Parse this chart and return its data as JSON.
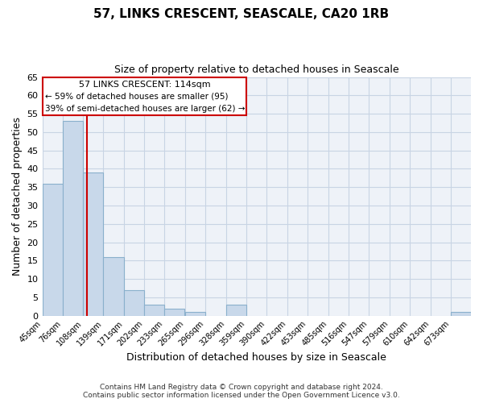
{
  "title": "57, LINKS CRESCENT, SEASCALE, CA20 1RB",
  "subtitle": "Size of property relative to detached houses in Seascale",
  "xlabel": "Distribution of detached houses by size in Seascale",
  "ylabel": "Number of detached properties",
  "bar_color": "#c8d8ea",
  "bar_edge_color": "#8ab0cc",
  "grid_color": "#c8d4e4",
  "background_color": "#eef2f8",
  "annotation_box_edge": "#cc0000",
  "vline_color": "#cc0000",
  "bins": [
    45,
    76,
    108,
    139,
    171,
    202,
    233,
    265,
    296,
    328,
    359,
    390,
    422,
    453,
    485,
    516,
    547,
    579,
    610,
    642,
    673
  ],
  "bin_width": 31,
  "counts": [
    36,
    53,
    39,
    16,
    7,
    3,
    2,
    1,
    0,
    3,
    0,
    0,
    0,
    0,
    0,
    0,
    0,
    0,
    0,
    0,
    1
  ],
  "vline_x": 114,
  "ylim": [
    0,
    65
  ],
  "yticks": [
    0,
    5,
    10,
    15,
    20,
    25,
    30,
    35,
    40,
    45,
    50,
    55,
    60,
    65
  ],
  "annotation_line1": "57 LINKS CRESCENT: 114sqm",
  "annotation_line2": "← 59% of detached houses are smaller (95)",
  "annotation_line3": "39% of semi-detached houses are larger (62) →",
  "footer_line1": "Contains HM Land Registry data © Crown copyright and database right 2024.",
  "footer_line2": "Contains public sector information licensed under the Open Government Licence v3.0.",
  "tick_labels": [
    "45sqm",
    "76sqm",
    "108sqm",
    "139sqm",
    "171sqm",
    "202sqm",
    "233sqm",
    "265sqm",
    "296sqm",
    "328sqm",
    "359sqm",
    "390sqm",
    "422sqm",
    "453sqm",
    "485sqm",
    "516sqm",
    "547sqm",
    "579sqm",
    "610sqm",
    "642sqm",
    "673sqm"
  ]
}
